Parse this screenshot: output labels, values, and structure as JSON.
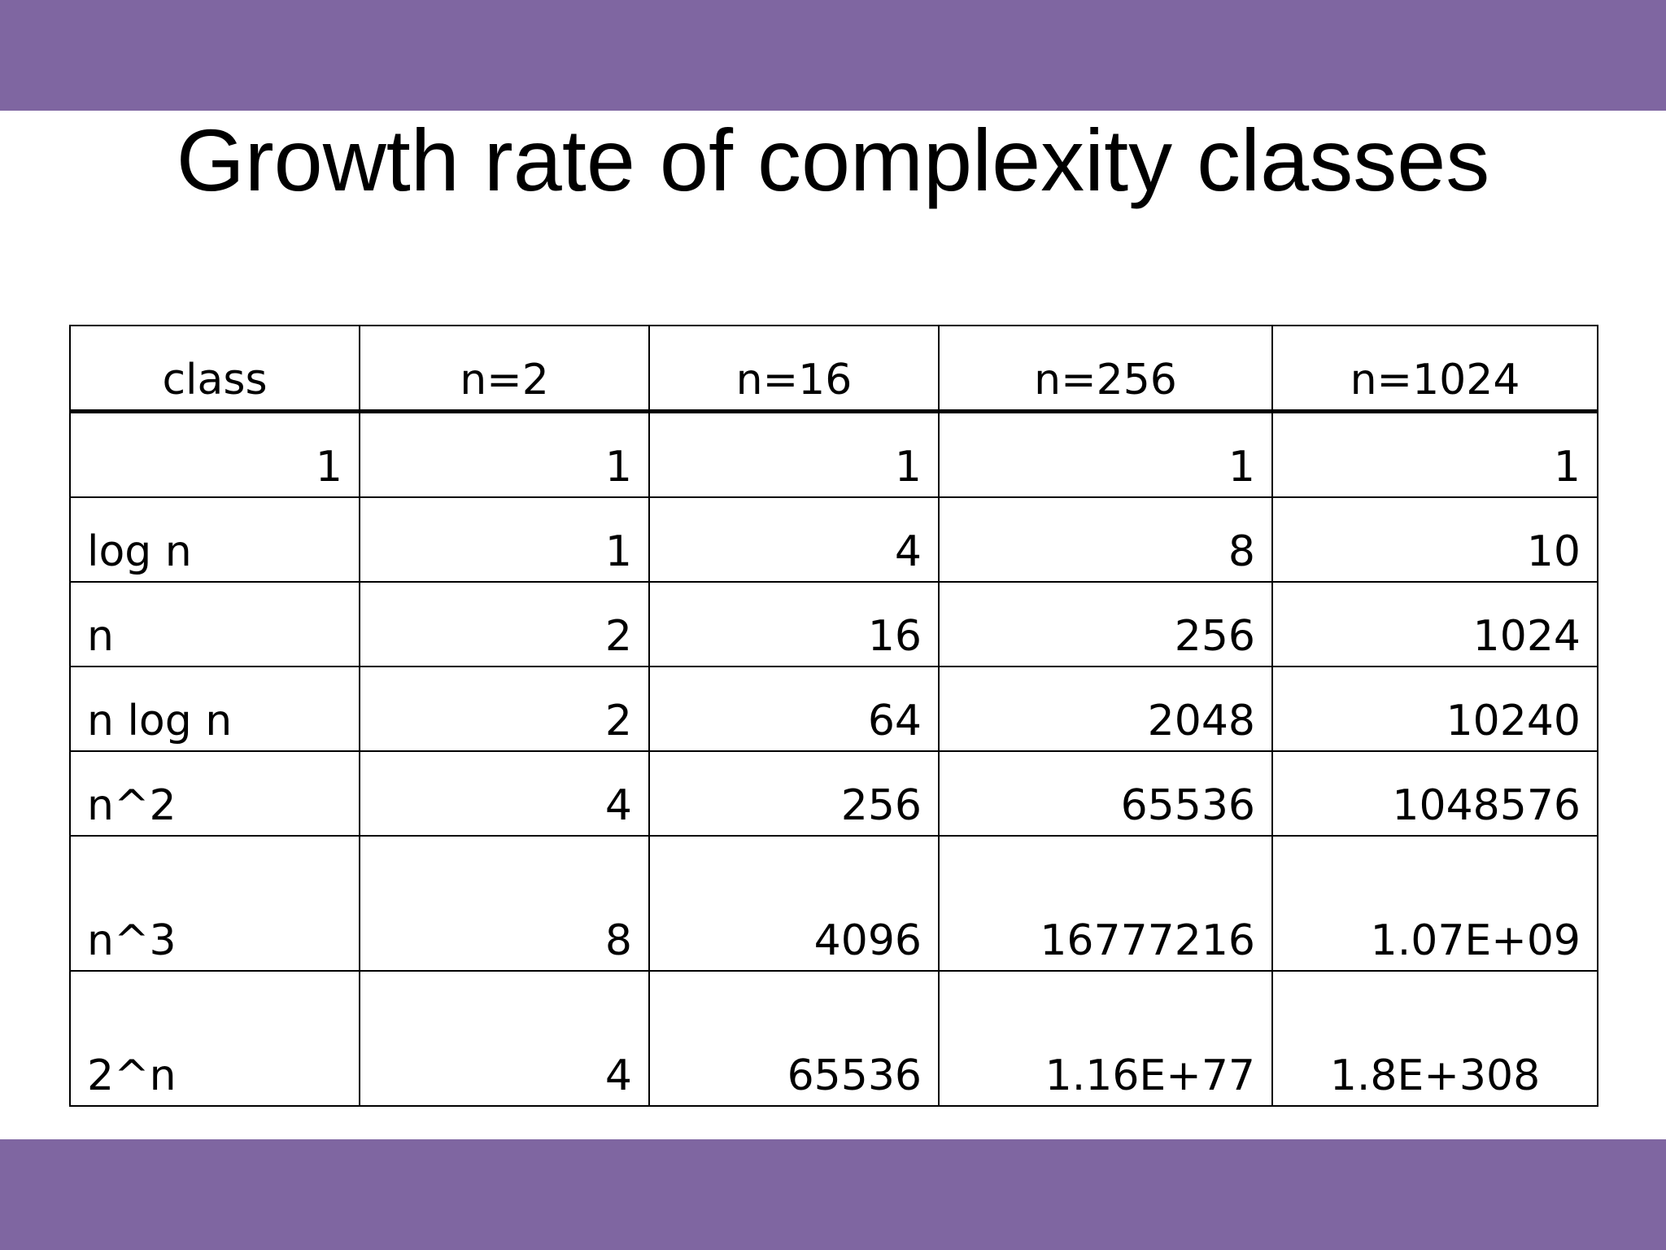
{
  "colors": {
    "band": "#7f66a1",
    "text": "#000000",
    "background": "#ffffff"
  },
  "slide": {
    "title": "Growth rate of complexity classes"
  },
  "table": {
    "headers": [
      "class",
      "n=2",
      "n=16",
      "n=256",
      "n=1024"
    ],
    "rows": [
      [
        "1",
        "1",
        "1",
        "1",
        "1"
      ],
      [
        "log n",
        "1",
        "4",
        "8",
        "10"
      ],
      [
        "n",
        "2",
        "16",
        "256",
        "1024"
      ],
      [
        "n log n",
        "2",
        "64",
        "2048",
        "10240"
      ],
      [
        "n^2",
        "4",
        "256",
        "65536",
        "1048576"
      ],
      [
        "n^3",
        "8",
        "4096",
        "16777216",
        "1.07E+09"
      ],
      [
        "2^n",
        "4",
        "65536",
        "1.16E+77",
        "1.8E+308"
      ]
    ]
  }
}
